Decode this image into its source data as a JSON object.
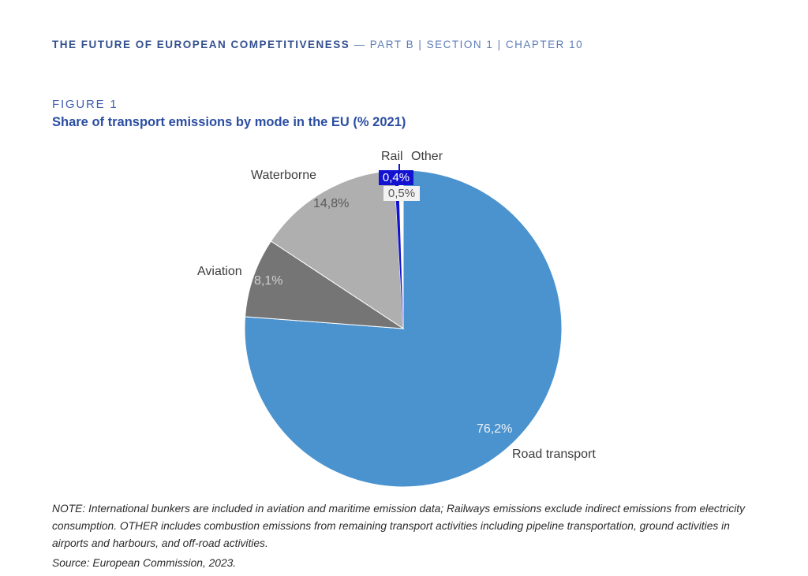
{
  "header": {
    "title_strong": "THE FUTURE OF EUROPEAN COMPETITIVENESS",
    "title_rest": "— PART B | SECTION 1 | CHAPTER 10"
  },
  "figure": {
    "label": "FIGURE 1",
    "title": "Share of transport emissions by mode in the EU (% 2021)"
  },
  "chart_data": {
    "type": "pie",
    "title": "Share of transport emissions by mode in the EU (% 2021)",
    "start_angle_deg": 0,
    "direction": "clockwise",
    "slices": [
      {
        "label": "Road transport",
        "value": 76.2,
        "value_label": "76,2%",
        "color": "#4B93CE"
      },
      {
        "label": "Aviation",
        "value": 8.1,
        "value_label": "8,1%",
        "color": "#757575"
      },
      {
        "label": "Waterborne",
        "value": 14.8,
        "value_label": "14,8%",
        "color": "#AFAFAF"
      },
      {
        "label": "Rail",
        "value": 0.4,
        "value_label": "0,4%",
        "color": "#1212D0"
      },
      {
        "label": "Other",
        "value": 0.5,
        "value_label": "0,5%",
        "color": "#FFFFFF"
      }
    ]
  },
  "note": {
    "text": "NOTE: International bunkers are included in aviation and maritime emission data; Railways emissions exclude indirect emissions from electricity consumption. OTHER includes combustion emissions from remaining transport activities including pipeline transportation, ground activities in airports and harbours, and off-road activities."
  },
  "source": {
    "text": "Source: European Commission, 2023."
  }
}
